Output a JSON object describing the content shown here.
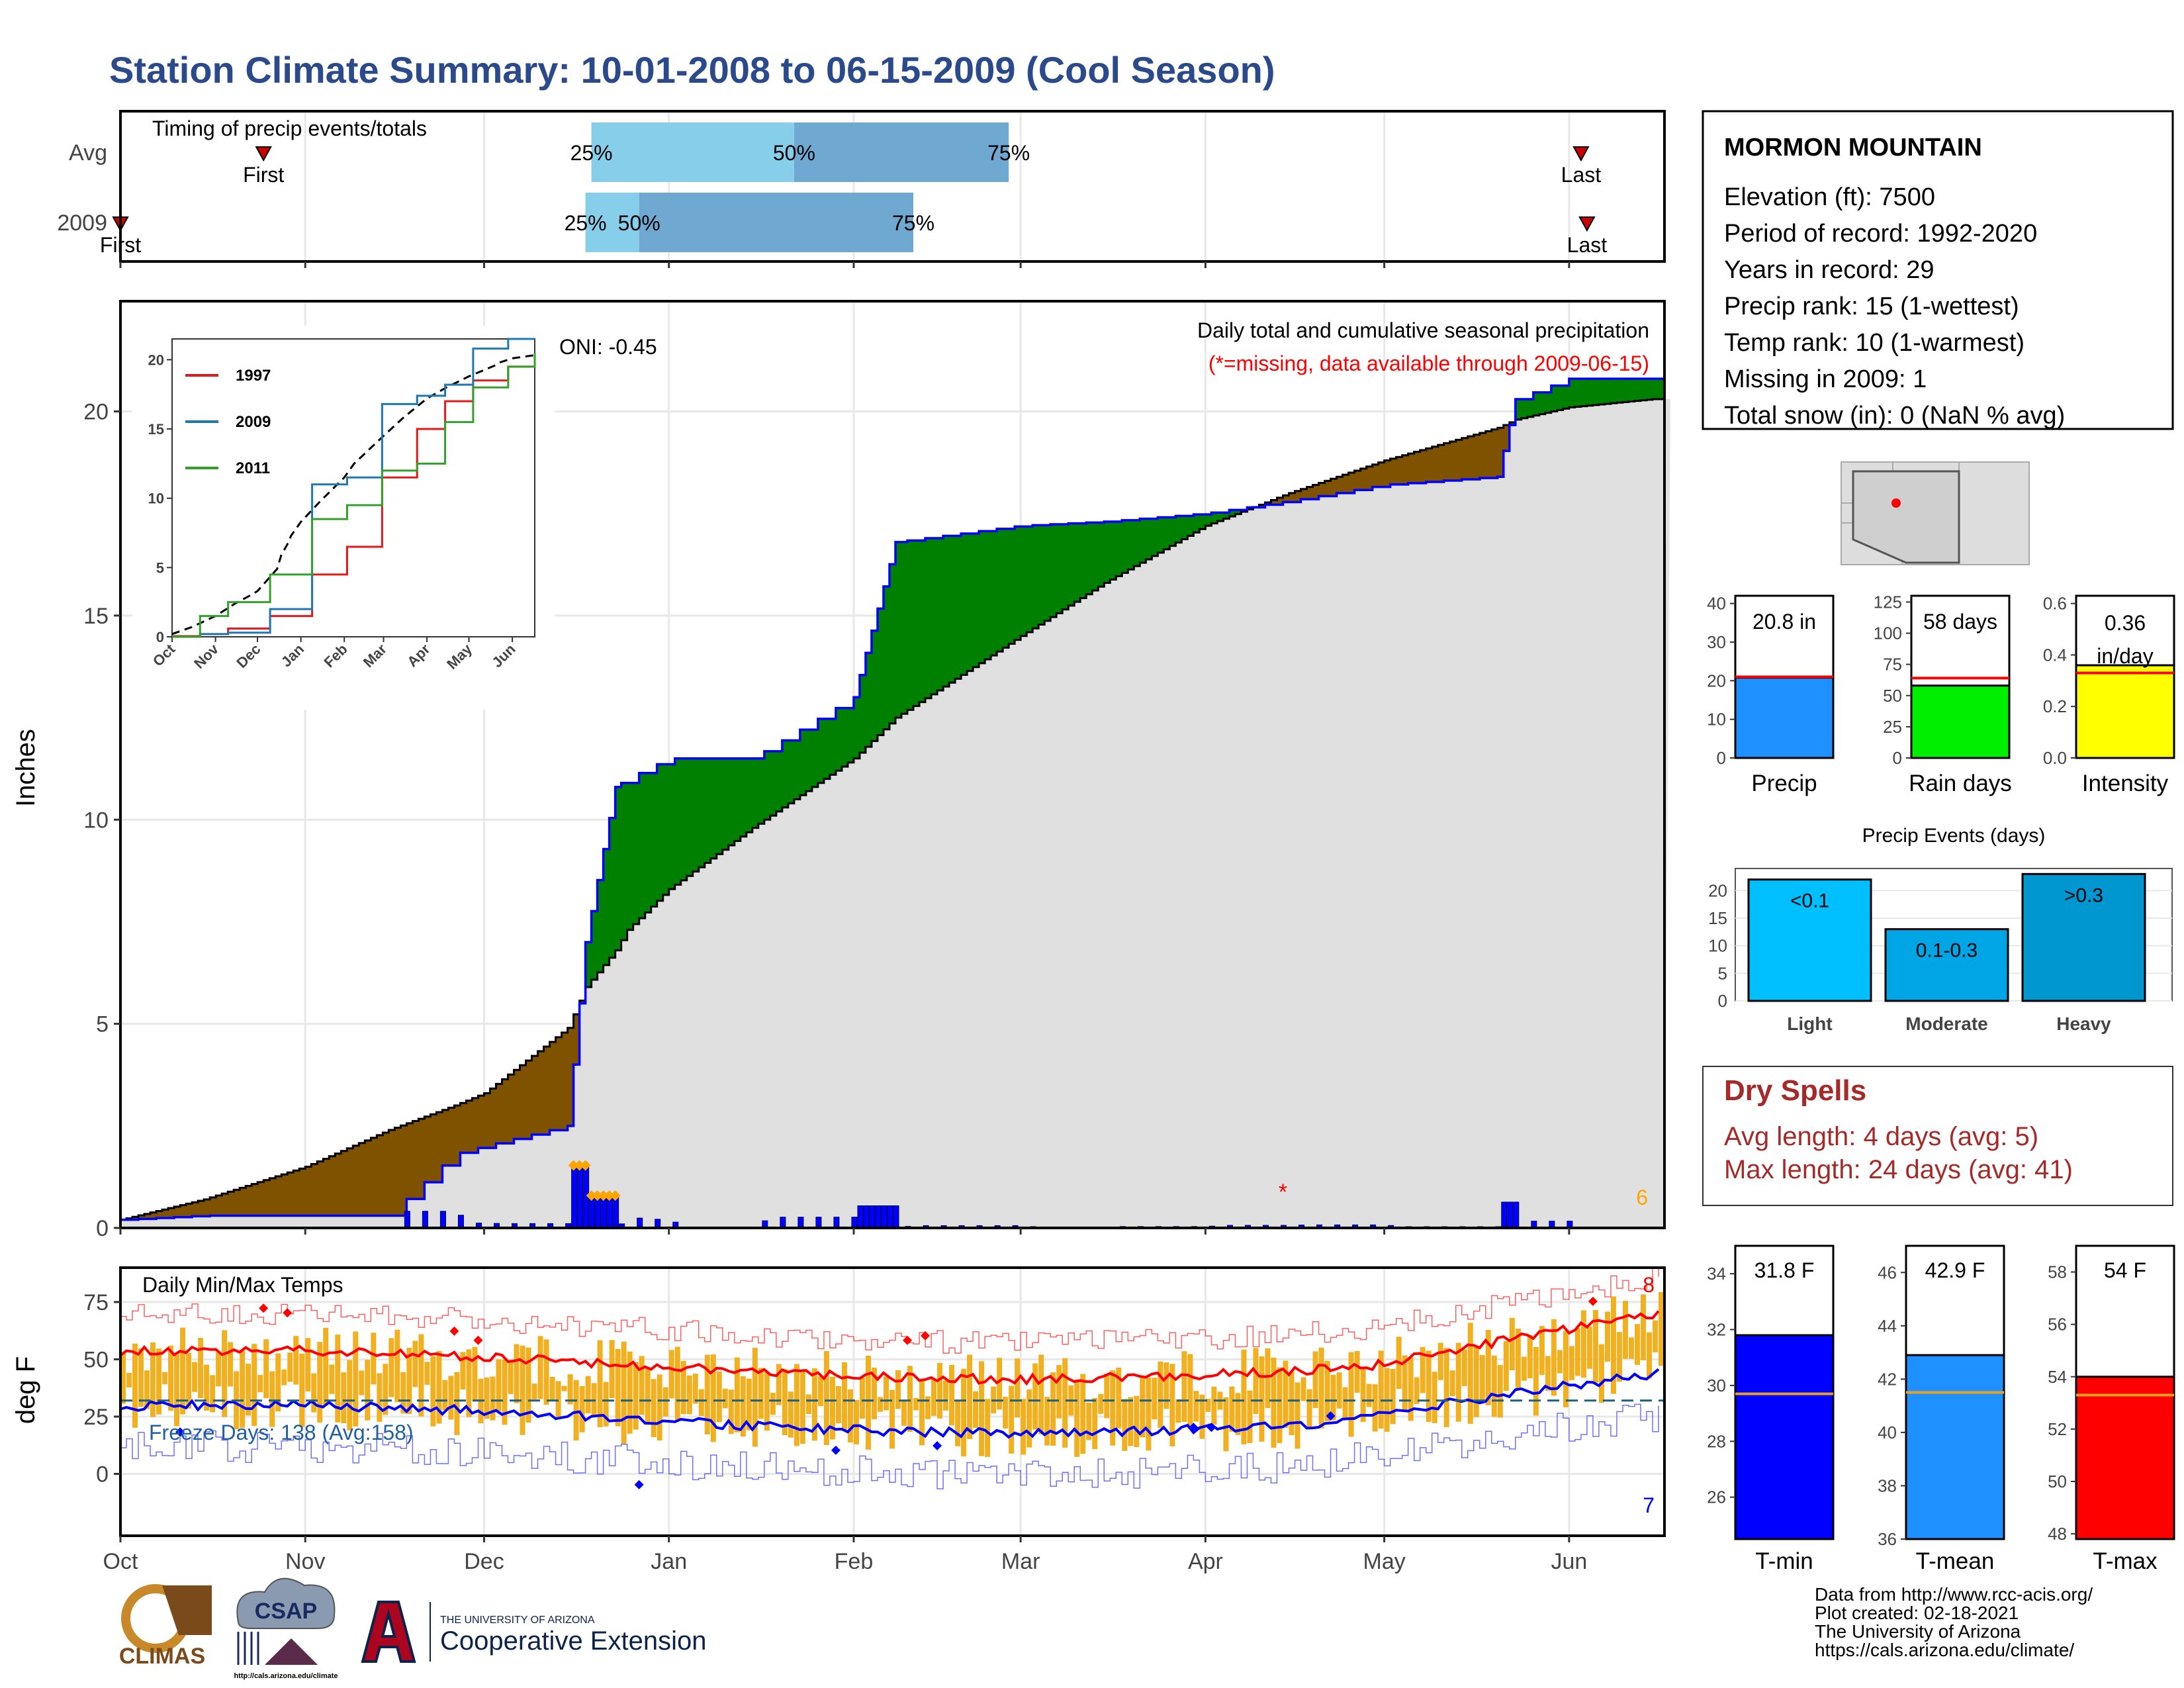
{
  "title": "Station Climate Summary: 10-01-2008 to 06-15-2009 (Cool Season)",
  "colors": {
    "title": "#2a4a8c",
    "wetter": "#008000",
    "drier": "#7f5200",
    "cum_fill": "#e0e0e0",
    "blue_line": "#0000ff",
    "temp_bar": "#f0b020",
    "tmax_line": "#ff0000",
    "tmin_line": "#0000ff",
    "dry_spells": "#a52a2a",
    "marker_orange": "#ffa500"
  },
  "timing": {
    "label": "Timing of precip events/totals",
    "rows": [
      {
        "name": "Avg",
        "first_label": "First",
        "first_day": 24,
        "last_label": "Last",
        "last_day": 245,
        "pct": [
          {
            "label": "25%",
            "day": 79
          },
          {
            "label": "50%",
            "day": 113
          },
          {
            "label": "75%",
            "day": 149
          }
        ]
      },
      {
        "name": "2009",
        "first_label": "First",
        "first_day": 0,
        "last_label": "Last",
        "last_day": 246,
        "pct": [
          {
            "label": "25%",
            "day": 78
          },
          {
            "label": "50%",
            "day": 87
          },
          {
            "label": "75%",
            "day": 133
          }
        ]
      }
    ]
  },
  "main_chart": {
    "subtitle_1": "Daily total and cumulative seasonal precipitation",
    "subtitle_2": "(*=missing, data available through 2009-06-15)",
    "oni": "ONI: -0.45",
    "ylabel": "Inches",
    "y_ticks": [
      "0",
      "5",
      "10",
      "15",
      "20"
    ],
    "y_max": 22.7,
    "corner_count": "6",
    "missing_marker": "*",
    "missing_day": 195
  },
  "inset": {
    "y_ticks": [
      "0",
      "5",
      "10",
      "15",
      "20"
    ],
    "x_ticks": [
      "Oct",
      "Nov",
      "Dec",
      "Jan",
      "Feb",
      "Mar",
      "Apr",
      "May",
      "Jun"
    ],
    "legend": [
      {
        "name": "1997",
        "color": "#e31a1c"
      },
      {
        "name": "2009",
        "color": "#1f78b4"
      },
      {
        "name": "2011",
        "color": "#33a02c"
      }
    ]
  },
  "temp_chart": {
    "label": "Daily Min/Max Temps",
    "ylabel": "deg F",
    "y_ticks": [
      "0",
      "25",
      "50",
      "75"
    ],
    "freeze": "Freeze Days: 138 (Avg:158)",
    "count_hot": "8",
    "count_cold": "7"
  },
  "months": [
    "Oct",
    "Nov",
    "Dec",
    "Jan",
    "Feb",
    "Mar",
    "Apr",
    "May",
    "Jun"
  ],
  "station": {
    "name": "MORMON MOUNTAIN",
    "lines": [
      "Elevation (ft): 7500",
      "Period of record: 1992-2020",
      "Years in record: 29",
      "Precip rank: 15 (1-wettest)",
      "Temp rank: 10 (1-warmest)",
      "Missing in 2009: 1",
      "Total snow (in): 0 (NaN % avg)"
    ]
  },
  "summary_bars": [
    {
      "name": "Precip",
      "label": "20.8 in",
      "value": 20.8,
      "avg": 21.0,
      "max": 42,
      "ticks": [
        "0",
        "10",
        "20",
        "30",
        "40"
      ],
      "color": "#1e90ff"
    },
    {
      "name": "Rain days",
      "label": "58 days",
      "value": 58,
      "avg": 64,
      "max": 130,
      "ticks": [
        "0",
        "25",
        "50",
        "75",
        "100",
        "125"
      ],
      "color": "#00ee00"
    },
    {
      "name": "Intensity",
      "label1": "0.36",
      "label2": "in/day",
      "value": 0.36,
      "avg": 0.33,
      "max": 0.63,
      "ticks": [
        "0.0",
        "0.2",
        "0.4",
        "0.6"
      ],
      "color": "#ffff00"
    }
  ],
  "precip_events": {
    "title": "Precip Events (days)",
    "ticks": [
      "0",
      "5",
      "10",
      "15",
      "20"
    ],
    "bars": [
      {
        "name": "Light",
        "label": "<0.1",
        "value": 22,
        "color": "#00bfff"
      },
      {
        "name": "Moderate",
        "label": "0.1-0.3",
        "value": 13,
        "color": "#00a5e5"
      },
      {
        "name": "Heavy",
        "label": ">0.3",
        "value": 23,
        "color": "#0096d0"
      }
    ]
  },
  "dry_spells": {
    "title": "Dry Spells",
    "avg": "Avg length: 4 days (avg: 5)",
    "max": "Max length: 24 days (avg: 41)"
  },
  "temp_bars": [
    {
      "name": "T-min",
      "label": "31.8 F",
      "value": 31.8,
      "avg": 29.7,
      "min": 24.5,
      "max": 35.0,
      "ticks": [
        "26",
        "28",
        "30",
        "32",
        "34"
      ],
      "color": "#0000ff"
    },
    {
      "name": "T-mean",
      "label": "42.9 F",
      "value": 42.9,
      "avg": 41.5,
      "min": 36.0,
      "max": 47.0,
      "ticks": [
        "36",
        "38",
        "40",
        "42",
        "44",
        "46"
      ],
      "color": "#1e90ff"
    },
    {
      "name": "T-max",
      "label": "54 F",
      "value": 54.0,
      "avg": 53.3,
      "min": 47.8,
      "max": 59.0,
      "ticks": [
        "48",
        "50",
        "52",
        "54",
        "56",
        "58"
      ],
      "color": "#ff0000"
    }
  ],
  "credits": [
    "Data from http://www.rcc-acis.org/",
    "Plot created: 02-18-2021",
    "The University of Arizona",
    "https://cals.arizona.edu/climate/"
  ],
  "logos": {
    "climas": "CLIMAS",
    "csap": "CSAP",
    "csap_url": "http://cals.arizona.edu/climate",
    "ua_small": "THE UNIVERSITY OF ARIZONA",
    "ua_big": "Cooperative Extension"
  },
  "chart_data": {
    "type": "area",
    "title": "Daily total and cumulative seasonal precipitation",
    "ylabel": "Inches",
    "x": [
      "10-01",
      "10-15",
      "11-01",
      "11-15",
      "11-26",
      "12-01",
      "12-15",
      "12-18",
      "12-23",
      "12-25",
      "01-01",
      "01-15",
      "02-01",
      "02-08",
      "03-01",
      "03-15",
      "04-01",
      "04-15",
      "05-01",
      "05-20",
      "05-23",
      "06-01",
      "06-15"
    ],
    "series": [
      {
        "name": "2009",
        "values": [
          0.2,
          0.3,
          0.3,
          0.3,
          1.8,
          2.0,
          2.5,
          7.0,
          10.8,
          11.0,
          11.5,
          11.5,
          13.0,
          16.8,
          17.2,
          17.3,
          17.5,
          17.8,
          18.2,
          18.4,
          20.3,
          20.8,
          20.8
        ]
      },
      {
        "name": "Avg",
        "values": [
          0.2,
          0.7,
          1.5,
          2.4,
          3.0,
          3.3,
          4.9,
          5.9,
          6.8,
          7.3,
          8.3,
          9.8,
          11.5,
          12.5,
          14.5,
          15.8,
          17.2,
          18.0,
          18.8,
          19.6,
          19.8,
          20.1,
          20.3
        ]
      }
    ]
  }
}
